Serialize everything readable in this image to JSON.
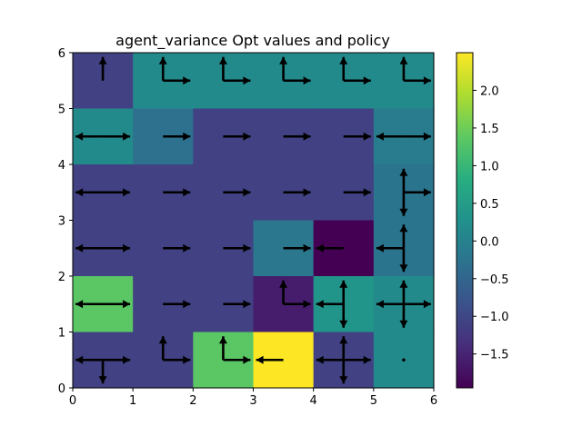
{
  "chart_data": {
    "type": "heatmap",
    "title": "agent_variance Opt values and policy",
    "xlabel": "",
    "ylabel": "",
    "xlim": [
      0,
      6
    ],
    "ylim": [
      0,
      6
    ],
    "x_ticks": [
      "0",
      "1",
      "2",
      "3",
      "4",
      "5",
      "6"
    ],
    "y_ticks": [
      "0",
      "1",
      "2",
      "3",
      "4",
      "5",
      "6"
    ],
    "colormap": "viridis",
    "color_range": [
      -1.95,
      2.5
    ],
    "colorbar_ticks": [
      "2.0",
      "1.5",
      "1.0",
      "0.5",
      "0.0",
      "−0.5",
      "−1.0",
      "−1.5"
    ],
    "colorbar_tick_values": [
      2.0,
      1.5,
      1.0,
      0.5,
      0.0,
      -0.5,
      -1.0,
      -1.5
    ],
    "rows_top_to_bottom": [
      [
        -1.1,
        0.15,
        0.15,
        0.15,
        0.15,
        0.15
      ],
      [
        0.15,
        -0.3,
        -1.1,
        -1.1,
        -1.1,
        -0.1
      ],
      [
        -1.1,
        -1.1,
        -1.1,
        -1.1,
        -1.1,
        -0.25
      ],
      [
        -1.1,
        -1.1,
        -1.1,
        -0.2,
        -1.95,
        -0.25
      ],
      [
        1.35,
        -1.1,
        -1.1,
        -1.6,
        0.35,
        0.15
      ],
      [
        -1.1,
        -1.1,
        1.35,
        2.5,
        -1.1,
        0.15
      ]
    ],
    "policy_top_to_bottom": [
      [
        "U",
        "UR",
        "UR",
        "UR",
        "UR",
        "UR"
      ],
      [
        "LR",
        "R",
        "R",
        "R",
        "R",
        "LR"
      ],
      [
        "LR",
        "R",
        "R",
        "R",
        "R",
        "UDR"
      ],
      [
        "LR",
        "R",
        "R",
        "R",
        "L",
        "UDL"
      ],
      [
        "LR",
        "R",
        "R",
        "UR",
        "UDL",
        "UDLR"
      ],
      [
        "DLR",
        "UR",
        "UR",
        "L",
        "UDLR",
        "."
      ]
    ]
  }
}
